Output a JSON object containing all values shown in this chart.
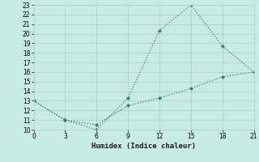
{
  "xlabel": "Humidex (Indice chaleur)",
  "line1_x": [
    0,
    3,
    6,
    9,
    12,
    15,
    18,
    21
  ],
  "line1_y": [
    13,
    11,
    10,
    13.3,
    20.3,
    23,
    18.7,
    16
  ],
  "line2_x": [
    0,
    3,
    6,
    9,
    12,
    15,
    18,
    21
  ],
  "line2_y": [
    13,
    11,
    10.5,
    12.5,
    13.3,
    14.3,
    15.5,
    16
  ],
  "color": "#2e7d6e",
  "bg_color": "#c8ebe3",
  "grid_color": "#aad4cc",
  "xlim": [
    0,
    21
  ],
  "ylim": [
    10,
    23
  ],
  "xticks": [
    0,
    3,
    6,
    9,
    12,
    15,
    18,
    21
  ],
  "yticks": [
    10,
    11,
    12,
    13,
    14,
    15,
    16,
    17,
    18,
    19,
    20,
    21,
    22,
    23
  ],
  "tick_fontsize": 5.5,
  "xlabel_fontsize": 6.5,
  "marker_size": 2.5,
  "linewidth": 0.9
}
